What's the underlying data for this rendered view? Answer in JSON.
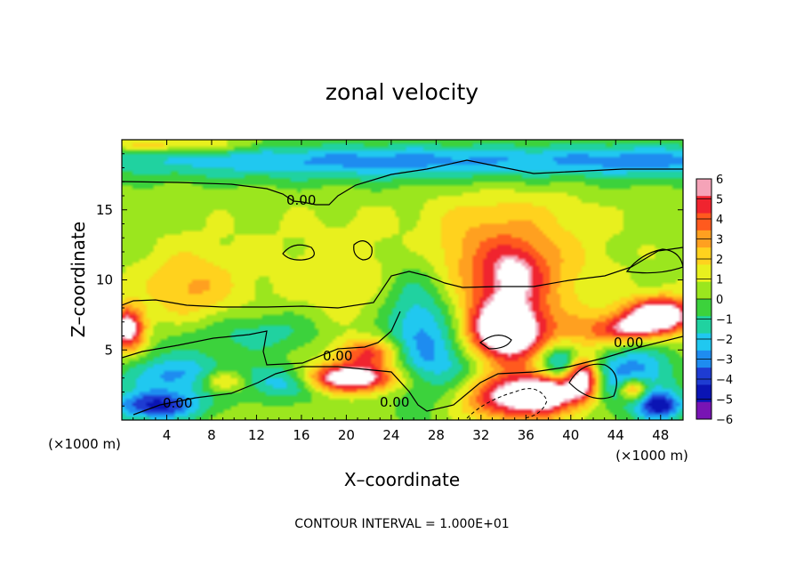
{
  "chart_data": {
    "type": "heatmap",
    "title": "zonal velocity",
    "xlabel": "X–coordinate",
    "ylabel": "Z–coordinate",
    "x_unit": "(×1000 m)",
    "y_unit": "(×1000 m)",
    "xlim": [
      0,
      50
    ],
    "ylim": [
      0,
      20
    ],
    "x_ticks": [
      4,
      8,
      12,
      16,
      20,
      24,
      28,
      32,
      36,
      40,
      44,
      48
    ],
    "y_ticks": [
      5,
      10,
      15
    ],
    "colorbar": {
      "levels": [
        6,
        5,
        4,
        3,
        2,
        1,
        0,
        -1,
        -2,
        -3,
        -4,
        -5,
        -6
      ],
      "colors": [
        "#f5a3b8",
        "#f0242f",
        "#ff5a1e",
        "#ffa020",
        "#ffd21e",
        "#e8f01e",
        "#9be61e",
        "#3cd23c",
        "#20d2a0",
        "#20c8f0",
        "#1e8cf0",
        "#1e3cd2",
        "#0a14b4",
        "#7814b4"
      ]
    },
    "contour_label": "0.00",
    "grid": false,
    "legend": "right",
    "note": "CONTOUR INTERVAL = 1.000E+01",
    "blobs": [
      {
        "x": 25,
        "z": 11,
        "rx": 40,
        "rz": 12,
        "v": 1.0
      },
      {
        "x": 6,
        "z": 9.5,
        "rx": 4,
        "rz": 2.5,
        "v": 2.2
      },
      {
        "x": 20,
        "z": 10,
        "rx": 5,
        "rz": 3,
        "v": 0.5
      },
      {
        "x": 34,
        "z": 11,
        "rx": 7,
        "rz": 4.5,
        "v": 3.2
      },
      {
        "x": 35,
        "z": 10.5,
        "rx": 2.5,
        "rz": 1.8,
        "v": 2.5
      },
      {
        "x": 42,
        "z": 12,
        "rx": 6,
        "rz": 3,
        "v": -0.2
      },
      {
        "x": 25,
        "z": 18.6,
        "rx": 32,
        "rz": 1.2,
        "v": -3.2
      },
      {
        "x": 48,
        "z": 18.5,
        "rx": 8,
        "rz": 1.2,
        "v": -1.5
      },
      {
        "x": 4,
        "z": 19.6,
        "rx": 8,
        "rz": 0.5,
        "v": 2.5
      },
      {
        "x": 25,
        "z": 17.5,
        "rx": 25,
        "rz": 1.5,
        "v": -1.0
      },
      {
        "x": 26,
        "z": 7,
        "rx": 3,
        "rz": 5,
        "v": -3.0
      },
      {
        "x": 29,
        "z": 6,
        "rx": 3.5,
        "rz": 4,
        "v": -2.0
      },
      {
        "x": 20,
        "z": 3,
        "rx": 4.5,
        "rz": 1.0,
        "v": 8.0
      },
      {
        "x": 22,
        "z": 4.8,
        "rx": 3,
        "rz": 1.0,
        "v": 4.0
      },
      {
        "x": 15,
        "z": 2.8,
        "rx": 4,
        "rz": 1.2,
        "v": -4.0
      },
      {
        "x": 5,
        "z": 3.2,
        "rx": 5,
        "rz": 1.5,
        "v": -3.5
      },
      {
        "x": 3,
        "z": 1.0,
        "rx": 4,
        "rz": 1.0,
        "v": -5.0
      },
      {
        "x": 9,
        "z": 2.8,
        "rx": 2,
        "rz": 0.8,
        "v": 3.5
      },
      {
        "x": 0.5,
        "z": 6.5,
        "rx": 1.5,
        "rz": 1.5,
        "v": 7.0
      },
      {
        "x": 10,
        "z": 6,
        "rx": 7,
        "rz": 1.5,
        "v": -1.5
      },
      {
        "x": 34,
        "z": 6,
        "rx": 3.5,
        "rz": 2.5,
        "v": 9.0
      },
      {
        "x": 35,
        "z": 1.8,
        "rx": 5,
        "rz": 1.8,
        "v": 8.0
      },
      {
        "x": 33,
        "z": 3.5,
        "rx": 5,
        "rz": 2.5,
        "v": -3.5
      },
      {
        "x": 39,
        "z": 4,
        "rx": 2,
        "rz": 1.5,
        "v": -4.0
      },
      {
        "x": 41,
        "z": 3,
        "rx": 1.5,
        "rz": 1.5,
        "v": 8.0
      },
      {
        "x": 45,
        "z": 3.5,
        "rx": 4,
        "rz": 2.5,
        "v": -4.0
      },
      {
        "x": 45.5,
        "z": 2.2,
        "rx": 1.2,
        "rz": 0.8,
        "v": 5.0
      },
      {
        "x": 48,
        "z": 7.5,
        "rx": 3,
        "rz": 1.2,
        "v": 8.0
      },
      {
        "x": 48,
        "z": 1.0,
        "rx": 2,
        "rz": 1.0,
        "v": -5.0
      },
      {
        "x": 42,
        "z": 6,
        "rx": 5,
        "rz": 1.5,
        "v": 2.0
      },
      {
        "x": 45,
        "z": 6.5,
        "rx": 3,
        "rz": 1.0,
        "v": 4.0
      },
      {
        "x": 38,
        "z": 2,
        "rx": 2,
        "rz": 1.2,
        "v": 4.5
      },
      {
        "x": 14,
        "z": 6.5,
        "rx": 4,
        "rz": 1.5,
        "v": -1.0
      }
    ]
  }
}
